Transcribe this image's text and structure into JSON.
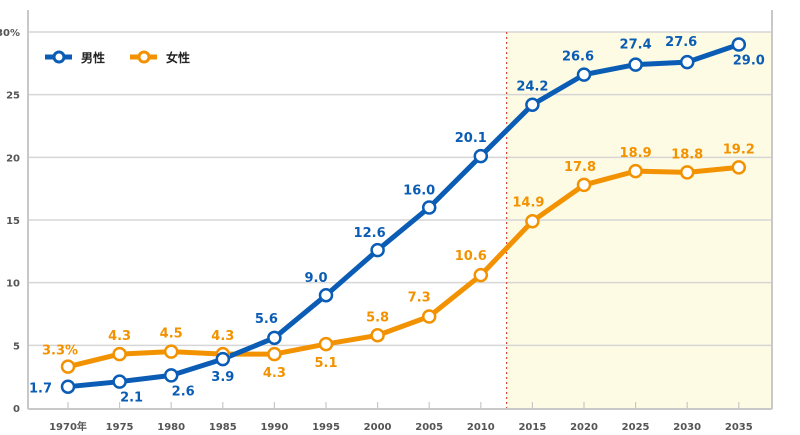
{
  "chart_data": {
    "type": "line",
    "title": "",
    "xlabel": "",
    "ylabel": "",
    "ylim": [
      0,
      30
    ],
    "y_ticks": [
      0,
      5,
      10,
      15,
      20,
      25,
      30
    ],
    "y_tick_labels": [
      "0",
      "5",
      "10",
      "15",
      "20",
      "25",
      "30%"
    ],
    "categories": [
      "1970年",
      "1975",
      "1980",
      "1985",
      "1990",
      "1995",
      "2000",
      "2005",
      "2010",
      "2015",
      "2020",
      "2025",
      "2030",
      "2035"
    ],
    "grid": true,
    "legend_position": "top-left",
    "projection_region": {
      "starts_after": "2010",
      "note": "shaded background with red dotted divider marks projected values"
    },
    "series": [
      {
        "name": "男性",
        "color": "#0a5cb5",
        "values": [
          1.7,
          2.1,
          2.6,
          3.9,
          5.6,
          9.0,
          12.6,
          16.0,
          20.1,
          24.2,
          26.6,
          27.4,
          27.6,
          29.0
        ],
        "labels": [
          "1.7",
          "2.1",
          "2.6",
          "3.9",
          "5.6",
          "9.0",
          "12.6",
          "16.0",
          "20.1",
          "24.2",
          "26.6",
          "27.4",
          "27.6",
          "29.0"
        ]
      },
      {
        "name": "女性",
        "color": "#f39200",
        "values": [
          3.3,
          4.3,
          4.5,
          4.3,
          4.3,
          5.1,
          5.8,
          7.3,
          10.6,
          14.9,
          17.8,
          18.9,
          18.8,
          19.2
        ],
        "labels": [
          "3.3%",
          "4.3",
          "4.5",
          "4.3",
          "4.3",
          "5.1",
          "5.8",
          "7.3",
          "10.6",
          "14.9",
          "17.8",
          "18.9",
          "18.8",
          "19.2"
        ]
      }
    ]
  },
  "colors": {
    "projection_bg": "#fdfbe3",
    "divider": "#e0473a",
    "grid": "#d6d6d6",
    "axis": "#c8c8c8"
  }
}
